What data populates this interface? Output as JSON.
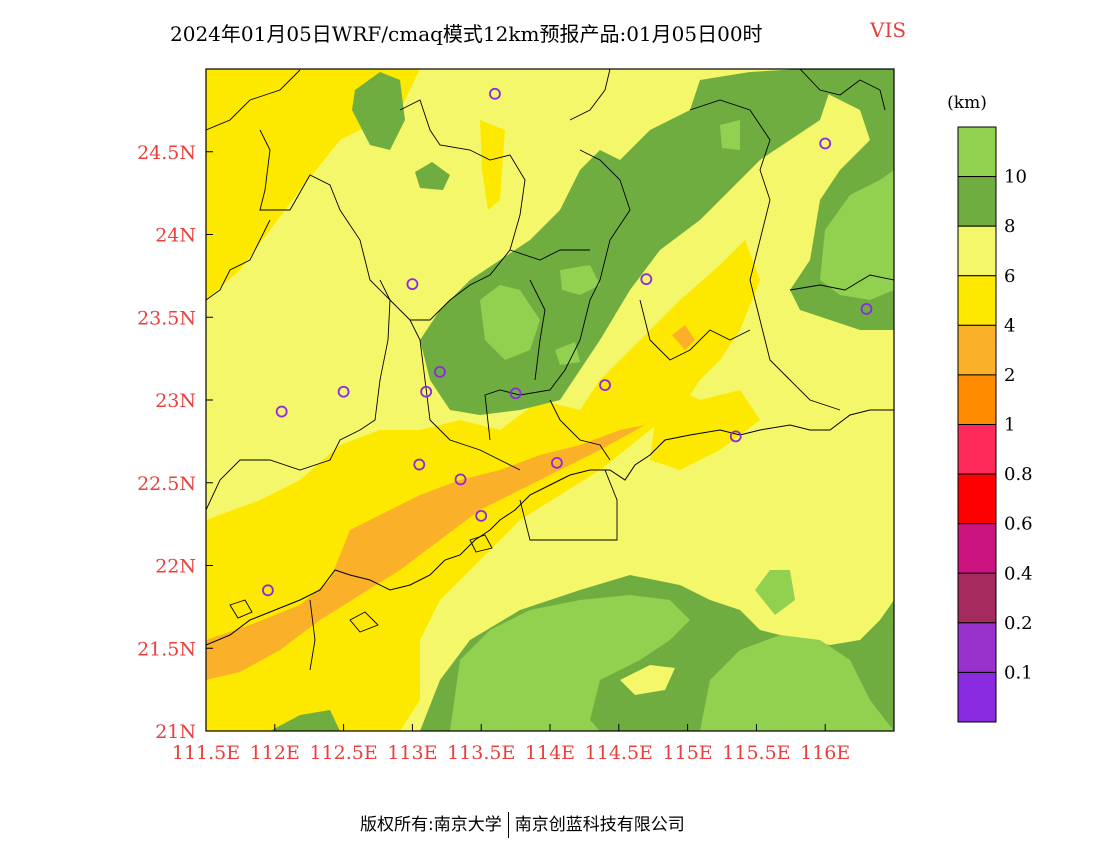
{
  "title": {
    "main": "2024年01月05日WRF/cmaq模式12km预报产品:01月05日00时",
    "variable": "VIS"
  },
  "footer": {
    "left": "版权所有:南京大学",
    "right": "南京创蓝科技有限公司"
  },
  "colors": {
    "axis_label": "#e8403c",
    "border": "#000000",
    "station_marker": "#8a2be2"
  },
  "axes": {
    "x_ticks": [
      "111.5E",
      "112E",
      "112.5E",
      "113E",
      "113.5E",
      "114E",
      "114.5E",
      "115E",
      "115.5E",
      "116E"
    ],
    "x_tick_values": [
      111.5,
      112.0,
      112.5,
      113.0,
      113.5,
      114.0,
      114.5,
      115.0,
      115.5,
      116.0
    ],
    "y_ticks": [
      "24.5N",
      "24N",
      "23.5N",
      "23N",
      "22.5N",
      "22N",
      "21.5N",
      "21N"
    ],
    "y_tick_values": [
      24.5,
      24.0,
      23.5,
      23.0,
      22.5,
      22.0,
      21.5,
      21.0
    ],
    "lon_range": [
      111.5,
      116.5
    ],
    "lat_range": [
      21.0,
      25.0
    ]
  },
  "legend": {
    "unit": "(km)",
    "bins": [
      {
        "color": "#92d050"
      },
      {
        "color": "#70ad40"
      },
      {
        "color": "#f5f76a"
      },
      {
        "color": "#fde800"
      },
      {
        "color": "#fbb02a"
      },
      {
        "color": "#ff8c00"
      },
      {
        "color": "#fe2b5a"
      },
      {
        "color": "#ff0000"
      },
      {
        "color": "#cc1480"
      },
      {
        "color": "#a52a5e"
      },
      {
        "color": "#9932cc"
      },
      {
        "color": "#8a2be2"
      }
    ],
    "labels": [
      "10",
      "8",
      "6",
      "4",
      "2",
      "1",
      "0.8",
      "0.6",
      "0.4",
      "0.2",
      "0.1"
    ]
  },
  "stations": [
    {
      "lon": 113.6,
      "lat": 24.85
    },
    {
      "lon": 116.0,
      "lat": 24.55
    },
    {
      "lon": 113.0,
      "lat": 23.7
    },
    {
      "lon": 114.7,
      "lat": 23.73
    },
    {
      "lon": 116.3,
      "lat": 23.55
    },
    {
      "lon": 112.5,
      "lat": 23.05
    },
    {
      "lon": 113.1,
      "lat": 23.05
    },
    {
      "lon": 113.2,
      "lat": 23.17
    },
    {
      "lon": 113.75,
      "lat": 23.04
    },
    {
      "lon": 114.4,
      "lat": 23.09
    },
    {
      "lon": 112.05,
      "lat": 22.93
    },
    {
      "lon": 115.35,
      "lat": 22.78
    },
    {
      "lon": 113.05,
      "lat": 22.61
    },
    {
      "lon": 113.35,
      "lat": 22.52
    },
    {
      "lon": 114.05,
      "lat": 22.62
    },
    {
      "lon": 113.5,
      "lat": 22.3
    },
    {
      "lon": 111.95,
      "lat": 21.85
    }
  ]
}
